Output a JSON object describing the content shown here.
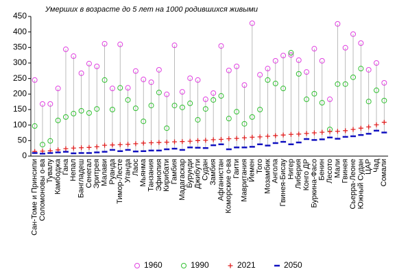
{
  "chart_data": {
    "type": "dot",
    "title": "Умерших в возрасте до 5 лет на 1000 родившихся живыми",
    "categories": [
      "Сан-Томе и Принсипи",
      "Соломоновы о-ва",
      "Тувалу",
      "Камбоджа",
      "Гана",
      "Непал",
      "Бангладеш",
      "Сенегал",
      "Эритрея",
      "Малави",
      "Руанда",
      "Тимор-Лесте",
      "Уганда",
      "Лаос",
      "Мьянма",
      "Танзания",
      "Эфиопия",
      "Кирибати",
      "Гамбия",
      "Мадагаскар",
      "Бурунди",
      "Джибути",
      "Судан",
      "Замбия",
      "Афганистан",
      "Коморские о-ва",
      "Гаити",
      "Мавритания",
      "Йемен",
      "Того",
      "Мозамбик",
      "Ангола",
      "Гвинея-Бисау",
      "Нигер",
      "Либерия",
      "Конго ДР",
      "Буркина-Фасо",
      "Бенин",
      "Лесото",
      "Мали",
      "Гвинея",
      "Сьерра-Леоне",
      "Южный Судан",
      "ЦАР",
      "Чад",
      "Сомали"
    ],
    "series": [
      {
        "name": "1960",
        "color": "#e040e0",
        "marker": "circle",
        "values": [
          245,
          168,
          168,
          218,
          344,
          322,
          267,
          298,
          289,
          362,
          218,
          360,
          220,
          274,
          247,
          238,
          278,
          199,
          357,
          207,
          251,
          245,
          183,
          203,
          355,
          276,
          289,
          229,
          428,
          262,
          282,
          307,
          324,
          326,
          309,
          271,
          346,
          307,
          183,
          426,
          349,
          393,
          364,
          278,
          300,
          236
        ]
      },
      {
        "name": "1990",
        "color": "#30c030",
        "marker": "circle",
        "values": [
          97,
          37,
          49,
          115,
          126,
          137,
          146,
          139,
          152,
          245,
          150,
          220,
          181,
          154,
          112,
          163,
          205,
          90,
          163,
          157,
          170,
          117,
          152,
          181,
          194,
          121,
          143,
          104,
          126,
          150,
          245,
          234,
          218,
          333,
          265,
          183,
          201,
          172,
          86,
          232,
          232,
          254,
          282,
          176,
          212,
          179
        ]
      },
      {
        "name": "2021",
        "color": "#e02020",
        "marker": "plus",
        "values": [
          15,
          16,
          17,
          20,
          24,
          26,
          27,
          28,
          30,
          35,
          36,
          37,
          38,
          40,
          42,
          43,
          44,
          45,
          46,
          47,
          48,
          50,
          51,
          53,
          54,
          56,
          57,
          59,
          61,
          62,
          64,
          66,
          68,
          70,
          71,
          73,
          75,
          77,
          79,
          80,
          82,
          86,
          90,
          94,
          101,
          109
        ]
      },
      {
        "name": "2050",
        "color": "#1010c0",
        "marker": "dash",
        "values": [
          10,
          8,
          10,
          12,
          14,
          9,
          10,
          10,
          12,
          14,
          20,
          16,
          20,
          15,
          16,
          18,
          18,
          22,
          24,
          20,
          28,
          27,
          26,
          35,
          38,
          22,
          28,
          28,
          30,
          38,
          34,
          42,
          46,
          38,
          44,
          55,
          52,
          54,
          60,
          56,
          62,
          64,
          68,
          72,
          82,
          76
        ]
      }
    ],
    "ylim": [
      0,
      450
    ],
    "yticks": [
      0,
      50,
      100,
      150,
      200,
      250,
      300,
      350,
      400,
      450
    ],
    "grid": false
  }
}
